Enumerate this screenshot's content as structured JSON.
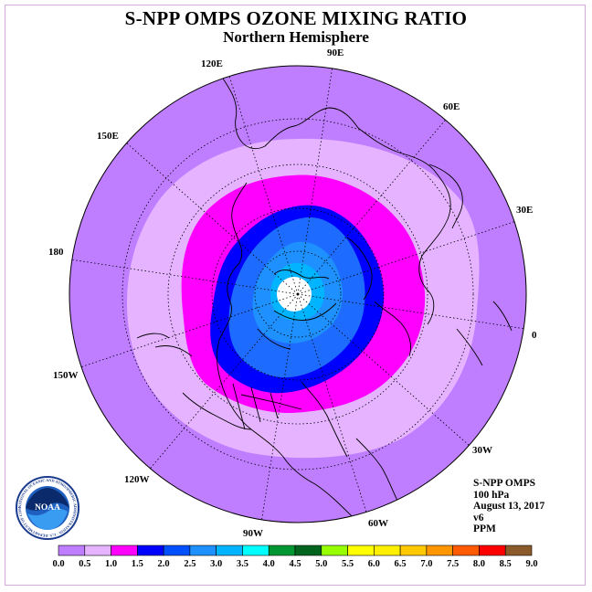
{
  "title": "S-NPP OMPS OZONE MIXING RATIO",
  "subtitle": "Northern Hemisphere",
  "longitude_labels": {
    "lon_90e": "90E",
    "lon_60e": "60E",
    "lon_30e": "30E",
    "lon_0": "0",
    "lon_30w": "30W",
    "lon_60w": "60W",
    "lon_90w": "90W",
    "lon_120w": "120W",
    "lon_150w": "150W",
    "lon_180": "180",
    "lon_150e": "150E",
    "lon_120e": "120E"
  },
  "info": {
    "instrument": "S-NPP OMPS",
    "level": "100 hPa",
    "date": "August 13, 2017",
    "version": "v6",
    "units": "PPM"
  },
  "colorbar": {
    "colors": [
      "#bf7dff",
      "#e5b3ff",
      "#ff00ff",
      "#0000ff",
      "#0050ff",
      "#1e90ff",
      "#00b4ff",
      "#00ffff",
      "#009632",
      "#00641e",
      "#96ff00",
      "#ffff00",
      "#fff000",
      "#ffc800",
      "#ff9600",
      "#ff5a00",
      "#ff0000",
      "#8b5a2b"
    ],
    "labels": [
      "0.0",
      "0.5",
      "1.0",
      "1.5",
      "2.0",
      "2.5",
      "3.0",
      "3.5",
      "4.0",
      "4.5",
      "5.0",
      "5.5",
      "6.0",
      "6.5",
      "7.0",
      "7.5",
      "8.0",
      "8.5",
      "9.0"
    ]
  },
  "field_colors": {
    "outer": "#bf7dff",
    "ring_05": "#e5b3ff",
    "ring_10": "#ff00ff",
    "ring_15": "#0000ff",
    "ring_20": "#1e6cff",
    "ring_25": "#1e90ff",
    "ring_30": "#00b4ff",
    "no_data": "#ffffff"
  },
  "logo": {
    "text": "NOAA",
    "ring_text": "NATIONAL OCEANIC AND ATMOSPHERIC ADMINISTRATION · U.S. DEPARTMENT OF COMMERCE"
  }
}
